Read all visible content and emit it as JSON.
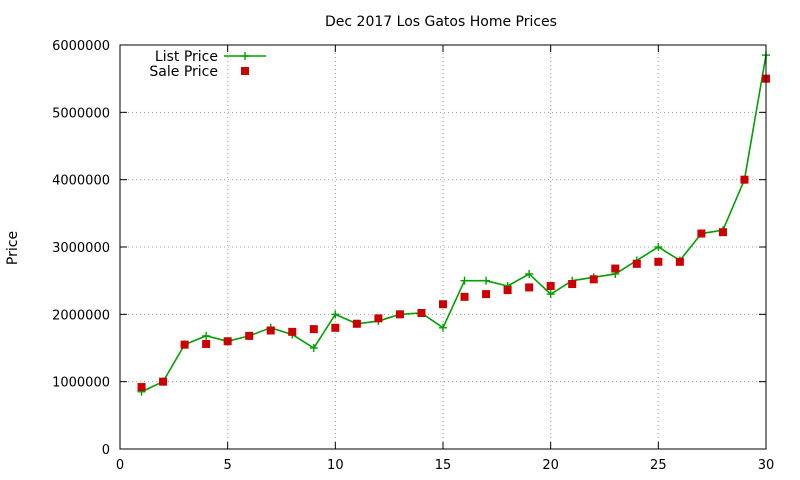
{
  "chart_data": {
    "type": "line",
    "title": "Dec 2017 Los Gatos Home Prices",
    "xlabel": "",
    "ylabel": "Price",
    "xlim": [
      0,
      30
    ],
    "ylim": [
      0,
      6000000
    ],
    "xticks": [
      0,
      5,
      10,
      15,
      20,
      25,
      30
    ],
    "yticks": [
      0,
      1000000,
      2000000,
      3000000,
      4000000,
      5000000,
      6000000
    ],
    "grid": true,
    "legend": "top-left",
    "x": [
      1,
      2,
      3,
      4,
      5,
      6,
      7,
      8,
      9,
      10,
      11,
      12,
      13,
      14,
      15,
      16,
      17,
      18,
      19,
      20,
      21,
      22,
      23,
      24,
      25,
      26,
      27,
      28,
      29,
      30
    ],
    "series": [
      {
        "name": "List Price",
        "style": "line+cross",
        "color": "#00a000",
        "values": [
          850000,
          1000000,
          1550000,
          1680000,
          1600000,
          1680000,
          1800000,
          1700000,
          1500000,
          2000000,
          1860000,
          1900000,
          2000000,
          2020000,
          1800000,
          2500000,
          2500000,
          2420000,
          2600000,
          2300000,
          2500000,
          2550000,
          2600000,
          2800000,
          3000000,
          2800000,
          3200000,
          3250000,
          4000000,
          5850000
        ]
      },
      {
        "name": "Sale Price",
        "style": "square",
        "color": "#cc0000",
        "values": [
          920000,
          1000000,
          1550000,
          1560000,
          1600000,
          1680000,
          1760000,
          1740000,
          1780000,
          1800000,
          1860000,
          1940000,
          2000000,
          2020000,
          2150000,
          2260000,
          2300000,
          2360000,
          2400000,
          2420000,
          2450000,
          2520000,
          2680000,
          2750000,
          2780000,
          2780000,
          3200000,
          3220000,
          4000000,
          5500000
        ]
      }
    ]
  }
}
